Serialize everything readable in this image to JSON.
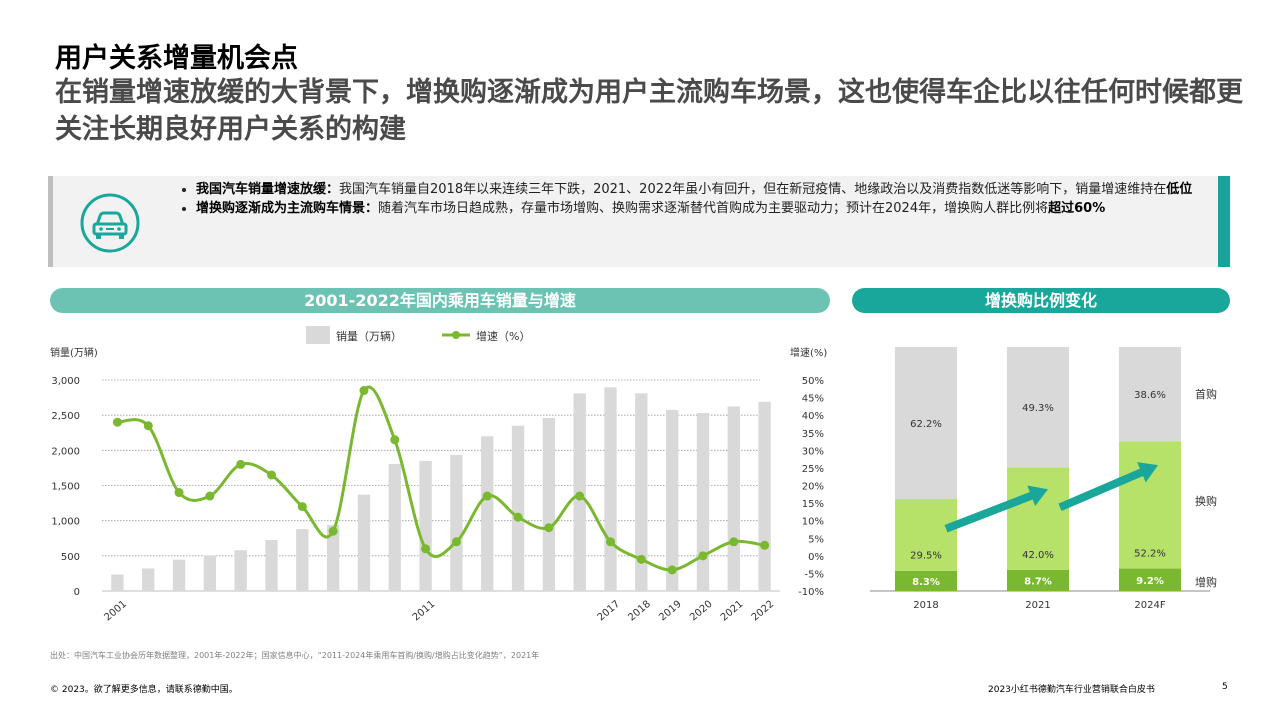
{
  "header": {
    "title": "用户关系增量机会点",
    "subtitle": "在销量增速放缓的大背景下，增换购逐渐成为用户主流购车场景，这也使得车企比以往任何时候都更关注长期良好用户关系的构建"
  },
  "info": {
    "icon": "car-icon",
    "bullets": [
      {
        "bold": "我国汽车销量增速放缓：",
        "text": "我国汽车销量自2018年以来连续三年下跌，2021、2022年虽小有回升，但在新冠疫情、地缘政治以及消费指数低迷等影响下，销量增速维持在",
        "bold_end": "低位",
        "tail": ""
      },
      {
        "bold": "增换购逐渐成为主流购车情景：",
        "text": "随着汽车市场日趋成熟，存量市场增购、换购需求逐渐替代首购成为主要驱动力；预计在2024年，增换购人群比例将",
        "bold_end": "超过60%",
        "tail": ""
      }
    ]
  },
  "colors": {
    "teal_light": "#6cc3b4",
    "teal": "#18a79a",
    "gray_bar": "#d9d9d9",
    "green_line": "#7ab82f",
    "green_light": "#b7e26a",
    "green_mid": "#7ab82f"
  },
  "chart_data": [
    {
      "type": "bar+line",
      "title": "2001-2022年国内乘用车销量与增速",
      "legend": [
        "销量（万辆）",
        "增速（%）"
      ],
      "ylabel_left": "销量(万辆)",
      "ylabel_right": "增速(%)",
      "ylim_left": [
        0,
        3000
      ],
      "yticks_left": [
        "0",
        "500",
        "1,000",
        "1,500",
        "2,000",
        "2,500",
        "3,000"
      ],
      "ylim_right": [
        -10,
        50
      ],
      "yticks_right": [
        "-10%",
        "-5%",
        "0%",
        "5%",
        "10%",
        "15%",
        "20%",
        "25%",
        "30%",
        "35%",
        "40%",
        "45%",
        "50%"
      ],
      "x": [
        "2001",
        "2002",
        "2003",
        "2004",
        "2005",
        "2006",
        "2007",
        "2008",
        "2009",
        "2010",
        "2011",
        "2012",
        "2013",
        "2014",
        "2015",
        "2016",
        "2017",
        "2018",
        "2019",
        "2020",
        "2021",
        "2022"
      ],
      "x_tick_labels": [
        "2001",
        "",
        "",
        "",
        "",
        "",
        "",
        "",
        "",
        "",
        "2011",
        "",
        "",
        "",
        "",
        "",
        "2017",
        "2018",
        "2019",
        "2020",
        "2021",
        "2022"
      ],
      "series": [
        {
          "name": "销量（万辆）",
          "values": [
            235,
            320,
            445,
            505,
            580,
            725,
            880,
            940,
            1370,
            1805,
            1850,
            1935,
            2200,
            2350,
            2460,
            2810,
            2895,
            2810,
            2575,
            2530,
            2625,
            2690
          ]
        },
        {
          "name": "增速（%）",
          "values": [
            38,
            37,
            18,
            17,
            26,
            23,
            14,
            7,
            47,
            33,
            2,
            4,
            17,
            11,
            8,
            17,
            4,
            -1,
            -4,
            0,
            4,
            3
          ]
        }
      ]
    },
    {
      "type": "stacked-bar",
      "title": "增换购比例变化",
      "categories": [
        "2018",
        "2021",
        "2024F"
      ],
      "series": [
        {
          "name": "增购",
          "values": [
            8.3,
            8.7,
            9.2
          ],
          "labels": [
            "8.3%",
            "8.7%",
            "9.2%"
          ]
        },
        {
          "name": "换购",
          "values": [
            29.5,
            42.0,
            52.2
          ],
          "labels": [
            "29.5%",
            "42.0%",
            "52.2%"
          ]
        },
        {
          "name": "首购",
          "values": [
            62.2,
            49.3,
            38.6
          ],
          "labels": [
            "62.2%",
            "49.3%",
            "38.6%"
          ]
        }
      ]
    }
  ],
  "footer": {
    "source": "出处：中国汽车工业协会历年数据整理，2001年-2022年；国家信息中心，“2011-2024年乘用车首购/换购/增购占比变化趋势”，2021年",
    "copyright": "© 2023。欲了解更多信息，请联系德勤中国。",
    "report": "2023小红书德勤汽车行业营销联合白皮书",
    "page": "5"
  }
}
